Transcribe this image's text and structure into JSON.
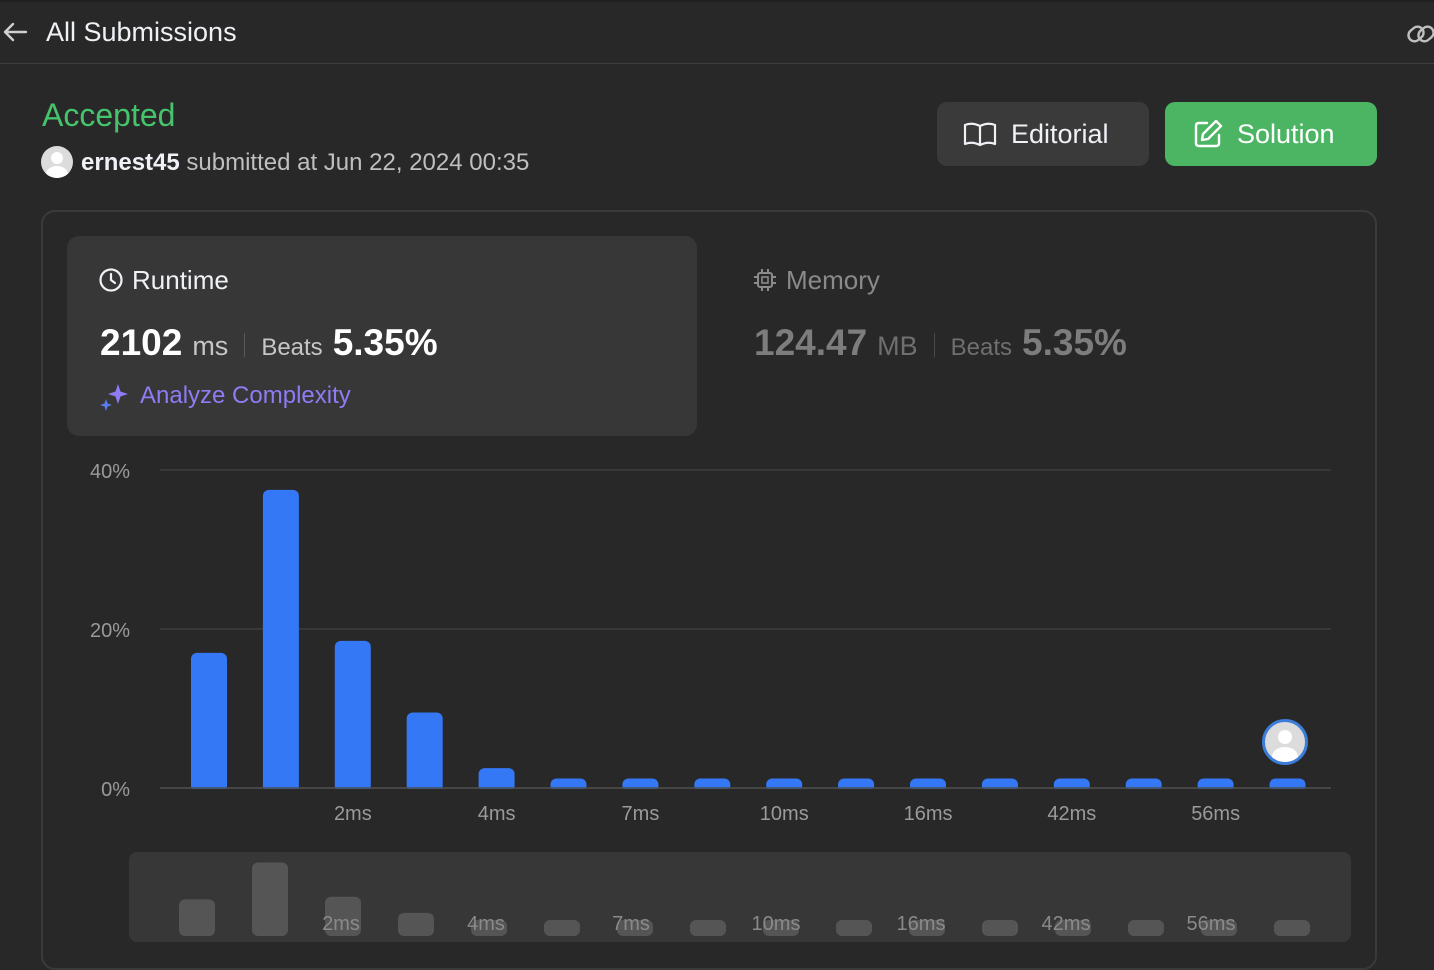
{
  "header": {
    "back_label": "All Submissions",
    "back_icon": "arrow-left-icon",
    "link_icon": "link-icon"
  },
  "submission": {
    "status": "Accepted",
    "status_color": "#46c46c",
    "username": "ernest45",
    "submitted_text": "submitted at Jun 22, 2024 00:35"
  },
  "buttons": {
    "editorial_label": "Editorial",
    "solution_label": "Solution"
  },
  "runtime": {
    "title": "Runtime",
    "value": "2102",
    "unit": "ms",
    "beats_label": "Beats",
    "beats_value": "5.35%",
    "analyze_label": "Analyze Complexity"
  },
  "memory": {
    "title": "Memory",
    "value": "124.47",
    "unit": "MB",
    "beats_label": "Beats",
    "beats_value": "5.35%"
  },
  "chart_data": {
    "type": "bar",
    "bar_color": "#3478f6",
    "values": [
      17,
      37.5,
      18.5,
      9.5,
      2.5,
      1.2,
      1.2,
      1.2,
      1.2,
      1.2,
      1.2,
      1.2,
      1.2,
      1.2,
      1.2,
      1.2
    ],
    "ylim": [
      0,
      40
    ],
    "yticks": [
      "0%",
      "20%",
      "40%"
    ],
    "xtick_labels": [
      {
        "bar_after": 2,
        "label": "2ms"
      },
      {
        "bar_after": 4,
        "label": "4ms"
      },
      {
        "bar_after": 6,
        "label": "7ms"
      },
      {
        "bar_after": 8,
        "label": "10ms"
      },
      {
        "bar_after": 10,
        "label": "16ms"
      },
      {
        "bar_after": 12,
        "label": "42ms"
      },
      {
        "bar_after": 14,
        "label": "56ms"
      }
    ],
    "user_bar_index": 15,
    "grid": true
  },
  "mini_chart": {
    "bar_color": "#555555",
    "labels": [
      "2ms",
      "4ms",
      "7ms",
      "10ms",
      "16ms",
      "42ms",
      "56ms"
    ]
  }
}
